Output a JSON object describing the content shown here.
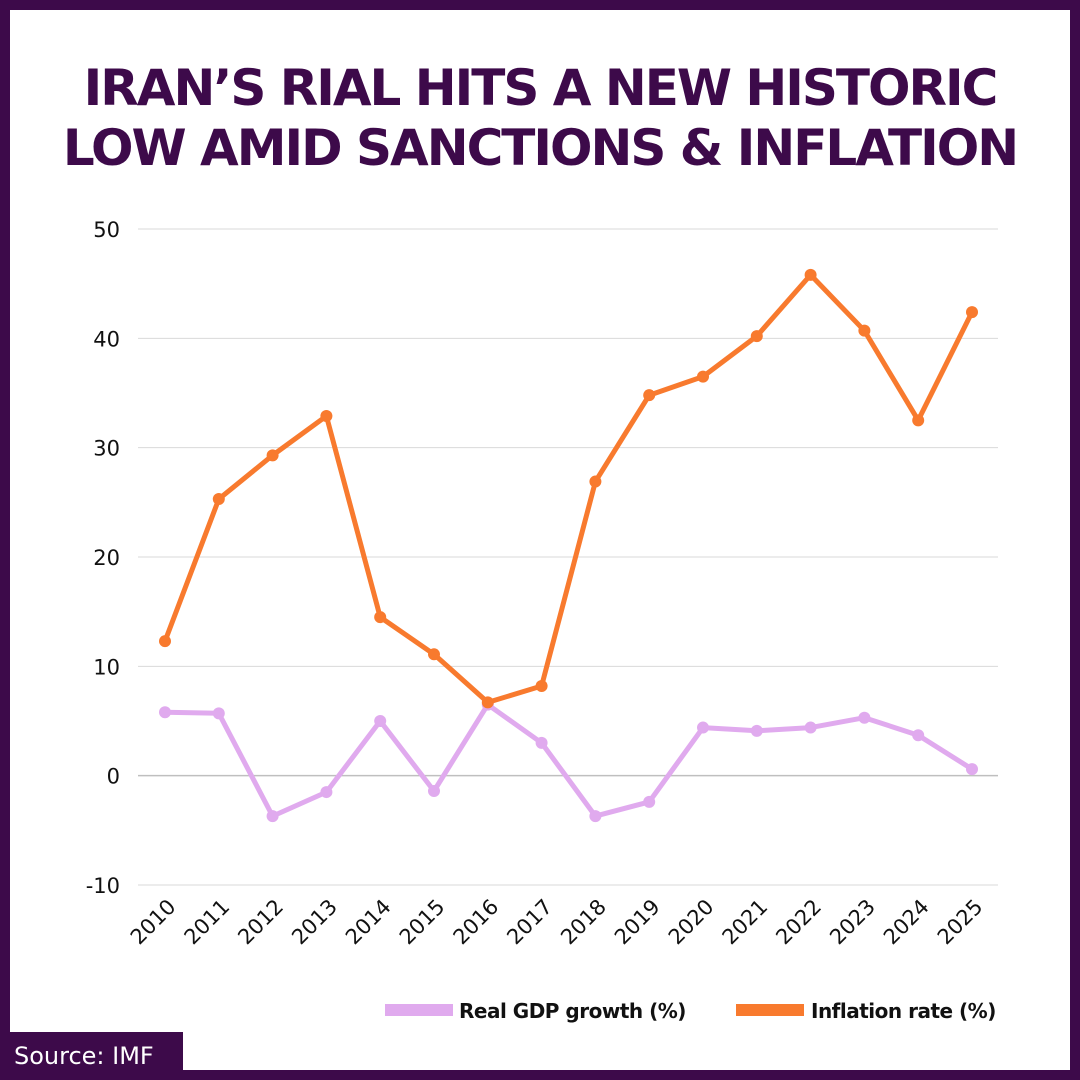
{
  "title_lines": [
    "IRAN’S RIAL HITS A NEW HISTORIC",
    "LOW AMID SANCTIONS & INFLATION"
  ],
  "source": "Source: IMF",
  "colors": {
    "frame": "#3d0a4a",
    "title": "#3d0a4a",
    "gdp": "#e0aaee",
    "inflation": "#f87a2e",
    "grid": "#d9d9d9",
    "zero_line": "#bfbfbf"
  },
  "chart_data": {
    "type": "line",
    "title": "IRAN’S RIAL HITS A NEW HISTORIC LOW AMID SANCTIONS & INFLATION",
    "xlabel": "",
    "ylabel": "",
    "ylim": [
      -10,
      50
    ],
    "yticks": [
      -10,
      0,
      10,
      20,
      30,
      40,
      50
    ],
    "grid": true,
    "legend_position": "bottom-right",
    "categories": [
      "2010",
      "2011",
      "2012",
      "2013",
      "2014",
      "2015",
      "2016",
      "2017",
      "2018",
      "2019",
      "2020",
      "2021",
      "2022",
      "2023",
      "2024",
      "2025"
    ],
    "series": [
      {
        "name": "Real GDP growth (%)",
        "color_key": "gdp",
        "values": [
          5.8,
          5.7,
          -3.7,
          -1.5,
          5.0,
          -1.4,
          6.5,
          3.0,
          -3.7,
          -2.4,
          4.4,
          4.1,
          4.4,
          5.3,
          3.7,
          0.6
        ]
      },
      {
        "name": "Inflation rate (%)",
        "color_key": "inflation",
        "values": [
          12.3,
          25.3,
          29.3,
          32.9,
          14.5,
          11.1,
          6.7,
          8.2,
          26.9,
          34.8,
          36.5,
          40.2,
          45.8,
          40.7,
          32.5,
          42.4
        ]
      }
    ]
  }
}
